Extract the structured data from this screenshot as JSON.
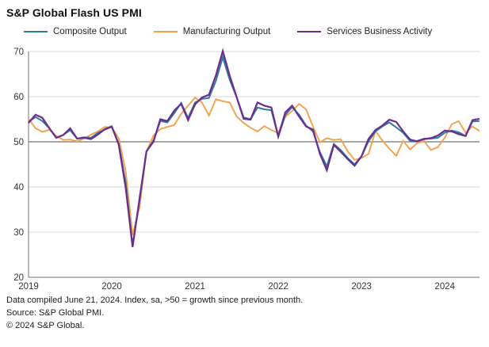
{
  "title": "S&P Global Flash US PMI",
  "colors": {
    "composite": "#2E7D9B",
    "manufacturing": "#F2A24B",
    "services": "#6B2C90",
    "reference_line": "#8C8C8C",
    "gridline": "#DADADA",
    "axis": "#8C8C8C",
    "axis_text": "#333333"
  },
  "chart_data": {
    "type": "line",
    "title": "S&P Global Flash US PMI",
    "x_start": "2019-01",
    "x_end": "2024-06",
    "frequency": "monthly",
    "n_points": 66,
    "x_tick_labels": [
      "2019",
      "2020",
      "2021",
      "2022",
      "2023",
      "2024"
    ],
    "x_tick_month_index": [
      0,
      12,
      24,
      36,
      48,
      60
    ],
    "ylim": [
      20,
      70
    ],
    "y_ticks": [
      20,
      30,
      40,
      50,
      60,
      70
    ],
    "reference_line": 50,
    "grid": true,
    "legend_position": "top",
    "series": [
      {
        "name": "Composite Output",
        "color": "#2E7D9B",
        "values": [
          54.4,
          55.5,
          54.6,
          53.0,
          50.9,
          51.5,
          52.6,
          50.7,
          51.0,
          50.9,
          52.0,
          52.7,
          53.3,
          49.6,
          40.9,
          27.0,
          37.0,
          47.9,
          50.3,
          54.6,
          54.3,
          56.3,
          58.6,
          55.3,
          58.7,
          59.5,
          59.7,
          63.5,
          68.7,
          63.7,
          59.9,
          55.4,
          55.0,
          57.6,
          57.2,
          57.0,
          51.1,
          55.9,
          57.7,
          56.0,
          53.6,
          52.3,
          47.7,
          44.6,
          49.5,
          48.2,
          46.4,
          45.0,
          46.8,
          50.1,
          52.3,
          53.4,
          54.3,
          53.2,
          52.0,
          50.2,
          50.2,
          50.7,
          50.7,
          50.9,
          52.0,
          52.5,
          52.1,
          51.3,
          54.5,
          54.6
        ]
      },
      {
        "name": "Manufacturing Output",
        "color": "#F2A24B",
        "values": [
          55.2,
          53.0,
          52.2,
          52.7,
          51.3,
          50.4,
          50.5,
          50.1,
          50.7,
          51.6,
          52.3,
          53.3,
          53.2,
          50.8,
          43.5,
          29.4,
          35.5,
          47.8,
          51.4,
          52.8,
          53.3,
          53.7,
          56.2,
          58.0,
          59.8,
          58.7,
          55.8,
          59.4,
          59.0,
          58.7,
          55.6,
          54.2,
          53.1,
          52.3,
          53.5,
          52.6,
          52.0,
          55.5,
          56.8,
          58.4,
          57.2,
          53.4,
          49.9,
          50.8,
          50.4,
          50.6,
          47.9,
          46.0,
          46.4,
          47.3,
          52.4,
          50.3,
          48.5,
          46.9,
          50.2,
          48.3,
          49.7,
          50.2,
          48.2,
          48.8,
          50.9,
          53.9,
          54.6,
          52.0,
          53.4,
          52.4
        ]
      },
      {
        "name": "Services Business Activity",
        "color": "#6B2C90",
        "values": [
          54.2,
          56.0,
          55.3,
          53.0,
          50.9,
          51.5,
          53.0,
          50.7,
          50.9,
          50.6,
          51.6,
          52.8,
          53.4,
          49.4,
          39.8,
          26.7,
          37.5,
          47.9,
          50.0,
          55.0,
          54.6,
          56.9,
          58.4,
          54.8,
          58.3,
          59.8,
          60.4,
          64.7,
          70.1,
          64.6,
          59.9,
          55.1,
          54.9,
          58.7,
          58.0,
          57.6,
          51.2,
          56.5,
          58.0,
          55.6,
          53.4,
          52.7,
          47.3,
          43.7,
          49.3,
          47.8,
          46.2,
          44.7,
          46.8,
          50.6,
          52.6,
          53.6,
          54.9,
          54.4,
          52.3,
          50.5,
          50.1,
          50.6,
          50.8,
          51.4,
          52.5,
          52.3,
          51.7,
          51.3,
          54.8,
          55.1
        ]
      }
    ]
  },
  "footnotes": {
    "line1": "Data compiled June 21, 2024. Index, sa, >50 = growth since previous month.",
    "line2": "Source: S&P Global PMI.",
    "line3": "© 2024 S&P Global."
  }
}
